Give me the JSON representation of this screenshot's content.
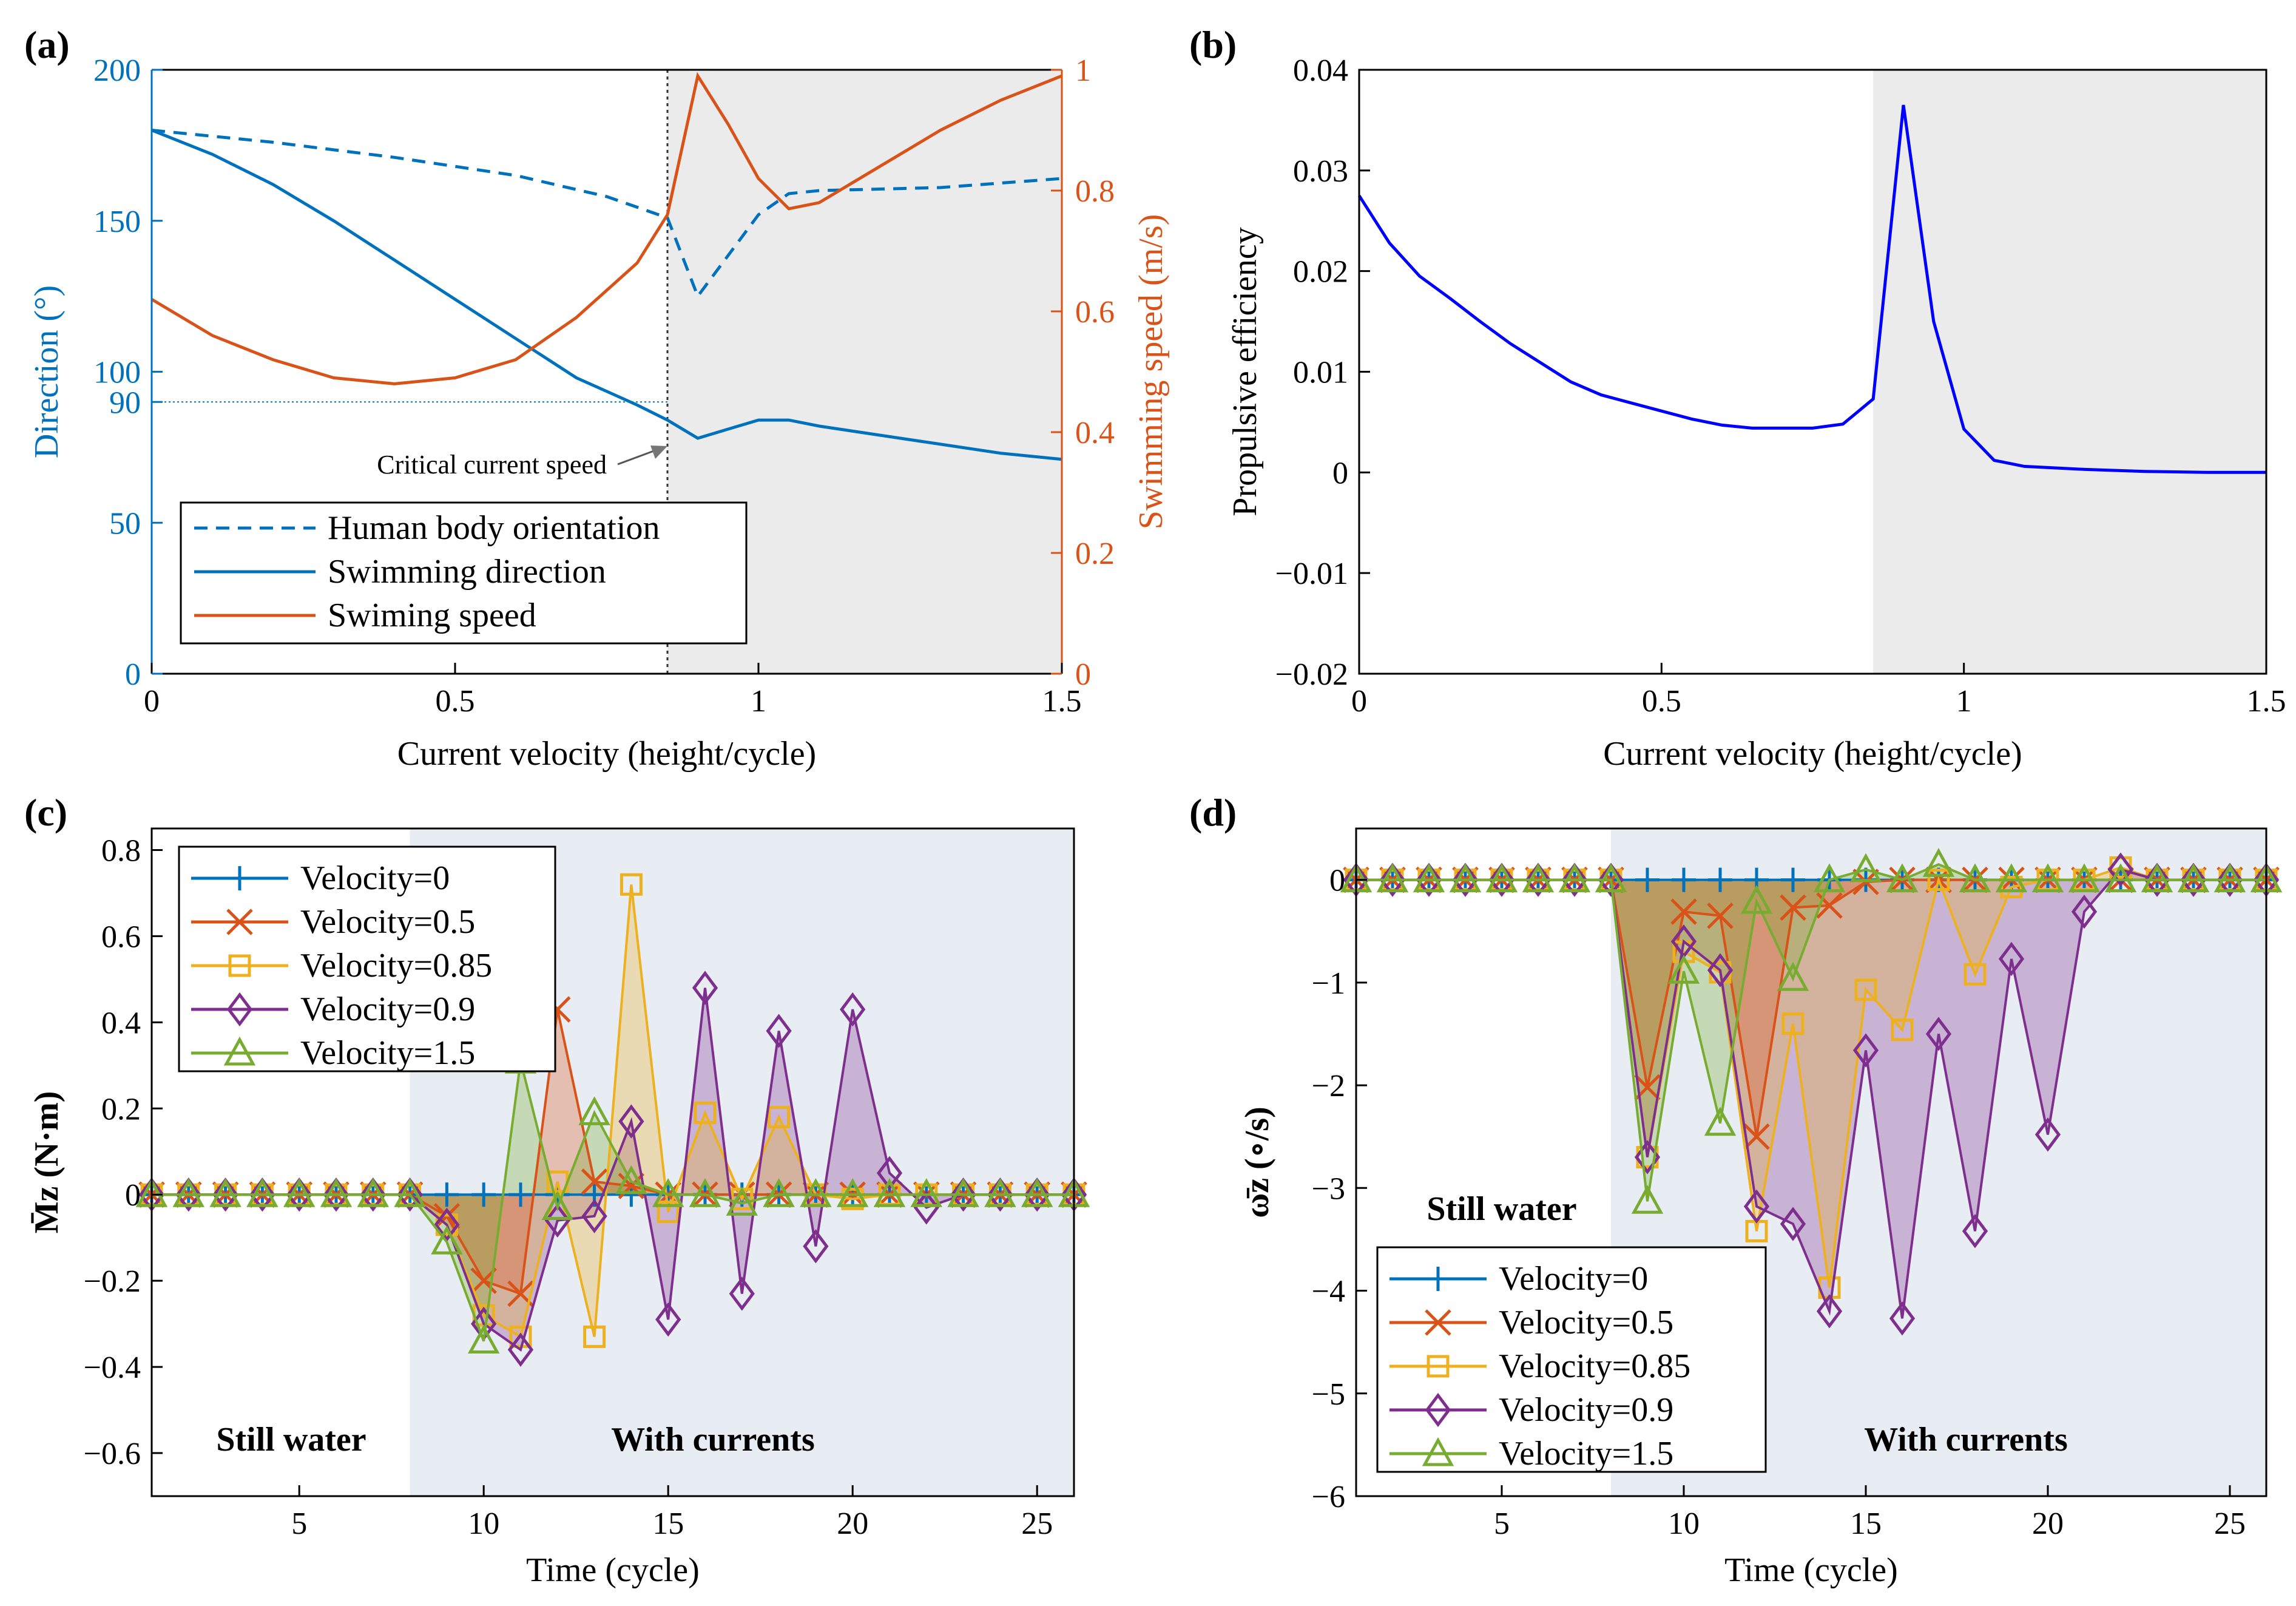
{
  "colors": {
    "blue": "#0072BD",
    "orange": "#D95319",
    "yellow": "#EDB120",
    "purple": "#7E2F8E",
    "green": "#77AC30",
    "efficiency": "#0000FF",
    "shade_ab": "#ebebeb",
    "shade_cd": "#e8ecf3"
  },
  "chart_data": [
    {
      "panel": "(a)",
      "type": "line",
      "xlabel": "Current velocity (height/cycle)",
      "ylabel_left": "Direction (°)",
      "ylabel_right": "Swimming speed (m/s)",
      "xlim": [
        0,
        1.5
      ],
      "ylim_left": [
        0,
        200
      ],
      "ylim_right": [
        0,
        1
      ],
      "xticks": [
        "0",
        "0.5",
        "1",
        "1.5"
      ],
      "yticks_left": [
        "0",
        "50",
        "90",
        "100",
        "150",
        "200"
      ],
      "yticks_right": [
        "0",
        "0.2",
        "0.4",
        "0.6",
        "0.8",
        "1"
      ],
      "critical_label": "Critical current speed",
      "critical_x": 0.85,
      "reference_y": 90,
      "legend": [
        "Human body orientation",
        "Swimming direction",
        "Swiming speed"
      ],
      "series": [
        {
          "name": "Human body orientation",
          "axis": "left",
          "style": "dashed",
          "color": "blue",
          "x": [
            0,
            0.2,
            0.4,
            0.6,
            0.75,
            0.85,
            0.9,
            1.0,
            1.05,
            1.1,
            1.3,
            1.5
          ],
          "y": [
            180,
            176,
            171,
            165,
            158,
            151,
            125,
            152,
            159,
            160,
            161,
            164
          ]
        },
        {
          "name": "Swimming direction",
          "axis": "left",
          "style": "solid",
          "color": "blue",
          "x": [
            0,
            0.1,
            0.2,
            0.3,
            0.4,
            0.5,
            0.6,
            0.7,
            0.8,
            0.85,
            0.9,
            0.95,
            1.0,
            1.05,
            1.1,
            1.2,
            1.3,
            1.4,
            1.5
          ],
          "y": [
            180,
            172,
            162,
            150,
            137,
            124,
            111,
            98,
            89,
            84,
            78,
            81,
            84,
            84,
            82,
            79,
            76,
            73,
            71
          ]
        },
        {
          "name": "Swiming speed",
          "axis": "right",
          "style": "solid",
          "color": "orange",
          "x": [
            0,
            0.1,
            0.2,
            0.3,
            0.4,
            0.5,
            0.6,
            0.7,
            0.8,
            0.85,
            0.9,
            0.95,
            1.0,
            1.05,
            1.1,
            1.2,
            1.3,
            1.4,
            1.5
          ],
          "y": [
            0.62,
            0.56,
            0.52,
            0.49,
            0.48,
            0.49,
            0.52,
            0.59,
            0.68,
            0.76,
            0.99,
            0.91,
            0.82,
            0.77,
            0.78,
            0.84,
            0.9,
            0.95,
            0.99
          ]
        }
      ]
    },
    {
      "panel": "(b)",
      "type": "line",
      "xlabel": "Current velocity (height/cycle)",
      "ylabel": "Propulsive efficiency",
      "xlim": [
        0,
        1.5
      ],
      "ylim": [
        -0.02,
        0.04
      ],
      "xticks": [
        "0",
        "0.5",
        "1",
        "1.5"
      ],
      "yticks": [
        "−0.02",
        "−0.01",
        "0",
        "0.01",
        "0.02",
        "0.03",
        "0.04"
      ],
      "shade_from": 0.85,
      "series": [
        {
          "name": "Propulsive efficiency",
          "color": "efficiency",
          "x": [
            0,
            0.05,
            0.1,
            0.15,
            0.2,
            0.25,
            0.3,
            0.35,
            0.4,
            0.45,
            0.5,
            0.55,
            0.6,
            0.65,
            0.7,
            0.75,
            0.8,
            0.85,
            0.9,
            0.95,
            1.0,
            1.05,
            1.1,
            1.2,
            1.3,
            1.4,
            1.5
          ],
          "y": [
            0.0275,
            0.0228,
            0.0195,
            0.0173,
            0.015,
            0.0128,
            0.0109,
            0.009,
            0.0077,
            0.0069,
            0.0061,
            0.0053,
            0.0047,
            0.0044,
            0.0044,
            0.0044,
            0.0048,
            0.0073,
            0.0365,
            0.015,
            0.0043,
            0.0012,
            0.0006,
            0.0003,
            0.0001,
            0.0,
            0.0
          ]
        }
      ]
    },
    {
      "panel": "(c)",
      "type": "line",
      "xlabel": "Time (cycle)",
      "ylabel": "M̄z (N·m)",
      "xlim": [
        1,
        26
      ],
      "ylim": [
        -0.7,
        0.85
      ],
      "xticks": [
        "5",
        "10",
        "15",
        "20",
        "25"
      ],
      "yticks": [
        "−0.6",
        "−0.4",
        "−0.2",
        "0",
        "0.2",
        "0.4",
        "0.6",
        "0.8"
      ],
      "region_labels": [
        "Still water",
        "With currents"
      ],
      "shade_from": 8,
      "legend": [
        "Velocity=0",
        "Velocity=0.5",
        "Velocity=0.85",
        "Velocity=0.9",
        "Velocity=1.5"
      ],
      "series": [
        {
          "name": "Velocity=0",
          "color": "blue",
          "marker": "plus",
          "x": [
            1,
            2,
            3,
            4,
            5,
            6,
            7,
            8,
            9,
            10,
            11,
            12,
            13,
            14,
            15,
            16,
            17,
            18,
            19,
            20,
            21,
            22,
            23,
            24,
            25,
            26
          ],
          "y": [
            0,
            0,
            0,
            0,
            0,
            0,
            0,
            0,
            0,
            0,
            0,
            0,
            0,
            0,
            0,
            0,
            0,
            0,
            0,
            0,
            0,
            0,
            0,
            0,
            0,
            0
          ]
        },
        {
          "name": "Velocity=0.5",
          "color": "orange",
          "marker": "x",
          "x": [
            1,
            2,
            3,
            4,
            5,
            6,
            7,
            8,
            9,
            10,
            11,
            12,
            13,
            14,
            15,
            16,
            17,
            18,
            19,
            20,
            21,
            22,
            23,
            24,
            25,
            26
          ],
          "y": [
            0,
            0,
            0,
            0,
            0,
            0,
            0,
            0,
            -0.05,
            -0.2,
            -0.23,
            0.43,
            0.03,
            0.02,
            0,
            0,
            0,
            0,
            0,
            0,
            0,
            0,
            0,
            0,
            0,
            0
          ]
        },
        {
          "name": "Velocity=0.85",
          "color": "yellow",
          "marker": "square",
          "x": [
            1,
            2,
            3,
            4,
            5,
            6,
            7,
            8,
            9,
            10,
            11,
            12,
            13,
            14,
            15,
            16,
            17,
            18,
            19,
            20,
            21,
            22,
            23,
            24,
            25,
            26
          ],
          "y": [
            0,
            0,
            0,
            0,
            0,
            0,
            0,
            0,
            -0.07,
            -0.28,
            -0.33,
            0.03,
            -0.33,
            0.72,
            -0.04,
            0.19,
            -0.01,
            0.18,
            0,
            -0.01,
            0,
            0,
            0,
            0,
            0,
            0
          ]
        },
        {
          "name": "Velocity=0.9",
          "color": "purple",
          "marker": "diamond",
          "x": [
            1,
            2,
            3,
            4,
            5,
            6,
            7,
            8,
            9,
            10,
            11,
            12,
            13,
            14,
            15,
            16,
            17,
            18,
            19,
            20,
            21,
            22,
            23,
            24,
            25,
            26
          ],
          "y": [
            0,
            0,
            0,
            0,
            0,
            0,
            0,
            0,
            -0.07,
            -0.3,
            -0.36,
            -0.06,
            -0.05,
            0.17,
            -0.29,
            0.48,
            -0.23,
            0.38,
            -0.12,
            0.43,
            0.05,
            -0.03,
            0,
            0,
            0,
            0
          ]
        },
        {
          "name": "Velocity=1.5",
          "color": "green",
          "marker": "triangle",
          "x": [
            1,
            2,
            3,
            4,
            5,
            6,
            7,
            8,
            9,
            10,
            11,
            12,
            13,
            14,
            15,
            16,
            17,
            18,
            19,
            20,
            21,
            22,
            23,
            24,
            25,
            26
          ],
          "y": [
            0,
            0,
            0,
            0,
            0,
            0,
            0,
            0,
            -0.11,
            -0.34,
            0.31,
            -0.03,
            0.19,
            0.03,
            0,
            0,
            -0.02,
            0,
            0,
            0,
            0,
            0,
            0,
            0,
            0,
            0
          ]
        }
      ]
    },
    {
      "panel": "(d)",
      "type": "line",
      "xlabel": "Time (cycle)",
      "ylabel": "ω̄z (∘/s)",
      "xlim": [
        1,
        26
      ],
      "ylim": [
        -6,
        0.5
      ],
      "xticks": [
        "5",
        "10",
        "15",
        "20",
        "25"
      ],
      "yticks": [
        "−6",
        "−5",
        "−4",
        "−3",
        "−2",
        "−1",
        "0"
      ],
      "region_labels": [
        "Still water",
        "With currents"
      ],
      "shade_from": 8,
      "legend": [
        "Velocity=0",
        "Velocity=0.5",
        "Velocity=0.85",
        "Velocity=0.9",
        "Velocity=1.5"
      ],
      "series": [
        {
          "name": "Velocity=0",
          "color": "blue",
          "marker": "plus",
          "x": [
            1,
            2,
            3,
            4,
            5,
            6,
            7,
            8,
            9,
            10,
            11,
            12,
            13,
            14,
            15,
            16,
            17,
            18,
            19,
            20,
            21,
            22,
            23,
            24,
            25,
            26
          ],
          "y": [
            0,
            0,
            0,
            0,
            0,
            0,
            0,
            0,
            0,
            0,
            0,
            0,
            0,
            0,
            0,
            0,
            0,
            0,
            0,
            0,
            0,
            0,
            0,
            0,
            0,
            0
          ]
        },
        {
          "name": "Velocity=0.5",
          "color": "orange",
          "marker": "x",
          "x": [
            1,
            2,
            3,
            4,
            5,
            6,
            7,
            8,
            9,
            10,
            11,
            12,
            13,
            14,
            15,
            16,
            17,
            18,
            19,
            20,
            21,
            22,
            23,
            24,
            25,
            26
          ],
          "y": [
            0,
            0,
            0,
            0,
            0,
            0,
            0,
            0,
            -2.02,
            -0.31,
            -0.35,
            -2.5,
            -0.27,
            -0.25,
            -0.02,
            0,
            0,
            0,
            0,
            0,
            0,
            0,
            0,
            0,
            0,
            0
          ]
        },
        {
          "name": "Velocity=0.85",
          "color": "yellow",
          "marker": "square",
          "x": [
            1,
            2,
            3,
            4,
            5,
            6,
            7,
            8,
            9,
            10,
            11,
            12,
            13,
            14,
            15,
            16,
            17,
            18,
            19,
            20,
            21,
            22,
            23,
            24,
            25,
            26
          ],
          "y": [
            0,
            0,
            0,
            0,
            0,
            0,
            0,
            0,
            -2.7,
            -0.7,
            -0.9,
            -3.42,
            -1.4,
            -3.97,
            -1.07,
            -1.46,
            0,
            -0.92,
            -0.07,
            0,
            0,
            0.12,
            0,
            0,
            0,
            0
          ]
        },
        {
          "name": "Velocity=0.9",
          "color": "purple",
          "marker": "diamond",
          "x": [
            1,
            2,
            3,
            4,
            5,
            6,
            7,
            8,
            9,
            10,
            11,
            12,
            13,
            14,
            15,
            16,
            17,
            18,
            19,
            20,
            21,
            22,
            23,
            24,
            25,
            26
          ],
          "y": [
            0,
            0,
            0,
            0,
            0,
            0,
            0,
            0,
            -2.7,
            -0.6,
            -0.88,
            -3.18,
            -3.35,
            -4.2,
            -1.66,
            -4.27,
            -1.5,
            -3.42,
            -0.77,
            -2.48,
            -0.31,
            0.1,
            0,
            0,
            0,
            0
          ]
        },
        {
          "name": "Velocity=1.5",
          "color": "green",
          "marker": "triangle",
          "x": [
            1,
            2,
            3,
            4,
            5,
            6,
            7,
            8,
            9,
            10,
            11,
            12,
            13,
            14,
            15,
            16,
            17,
            18,
            19,
            20,
            21,
            22,
            23,
            24,
            25,
            26
          ],
          "y": [
            0,
            0,
            0,
            0,
            0,
            0,
            0,
            0,
            -3.13,
            -0.89,
            -2.37,
            -0.21,
            -0.96,
            0,
            0.1,
            0,
            0.15,
            0,
            0,
            0,
            0,
            0,
            0,
            0,
            0,
            0
          ]
        }
      ]
    }
  ]
}
